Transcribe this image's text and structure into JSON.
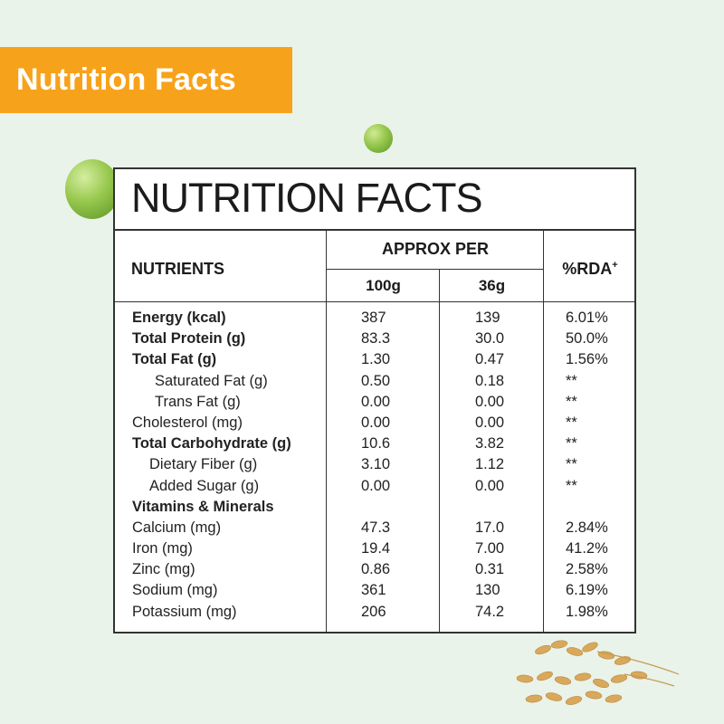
{
  "banner": {
    "title": "Nutrition Facts"
  },
  "panel": {
    "title": "NUTRITION FACTS",
    "headers": {
      "nutrients": "NUTRIENTS",
      "approx_per": "APPROX PER",
      "col_100g": "100g",
      "col_36g": "36g",
      "rda": "%RDA",
      "rda_mark": "+"
    },
    "rows": [
      {
        "name": "Energy (kcal)",
        "v100": "387",
        "v36": "139",
        "rda": "6.01%"
      },
      {
        "name": "Total Protein (g)",
        "v100": "83.3",
        "v36": "30.0",
        "rda": "50.0%"
      },
      {
        "name": "Total Fat (g)",
        "v100": "1.30",
        "v36": "0.47",
        "rda": "1.56%"
      },
      {
        "name": "Saturated Fat (g)",
        "v100": "0.50",
        "v36": "0.18",
        "rda": "**"
      },
      {
        "name": "Trans Fat (g)",
        "v100": "0.00",
        "v36": "0.00",
        "rda": "**"
      },
      {
        "name": "Cholesterol (mg)",
        "v100": "0.00",
        "v36": "0.00",
        "rda": "**"
      },
      {
        "name": "Total Carbohydrate (g)",
        "v100": "10.6",
        "v36": "3.82",
        "rda": "**"
      },
      {
        "name": "Dietary Fiber (g)",
        "v100": "3.10",
        "v36": "1.12",
        "rda": "**"
      },
      {
        "name": "Added Sugar (g)",
        "v100": "0.00",
        "v36": "0.00",
        "rda": "**"
      },
      {
        "name": "Vitamins & Minerals",
        "v100": "",
        "v36": "",
        "rda": ""
      },
      {
        "name": "Calcium (mg)",
        "v100": "47.3",
        "v36": "17.0",
        "rda": "2.84%"
      },
      {
        "name": "Iron (mg)",
        "v100": "19.4",
        "v36": "7.00",
        "rda": "41.2%"
      },
      {
        "name": "Zinc (mg)",
        "v100": "0.86",
        "v36": "0.31",
        "rda": "2.58%"
      },
      {
        "name": "Sodium (mg)",
        "v100": "361",
        "v36": "130",
        "rda": "6.19%"
      },
      {
        "name": "Potassium (mg)",
        "v100": "206",
        "v36": "74.2",
        "rda": "1.98%"
      }
    ]
  },
  "colors": {
    "background": "#e9f3ea",
    "banner": "#f7a21b",
    "pea": "#8cc043",
    "grain": "#d9a85a"
  },
  "decor": {
    "icons": [
      "pea-icon",
      "pea-icon",
      "grain-icon"
    ]
  }
}
